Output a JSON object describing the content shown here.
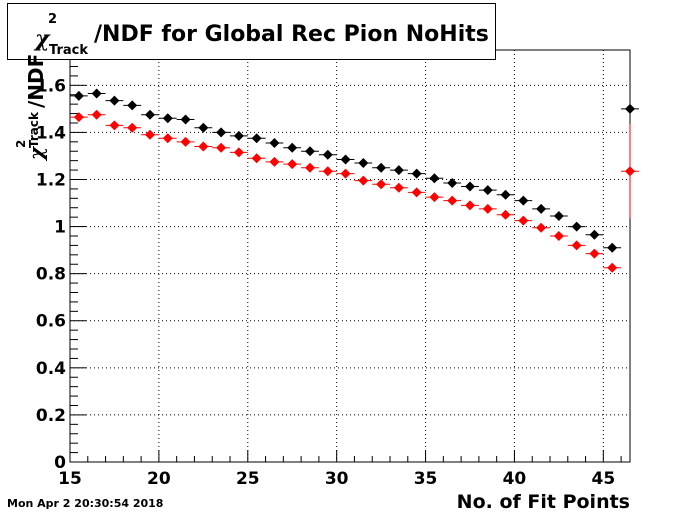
{
  "page": {
    "timestamp": "Mon Apr  2 20:30:54 2018"
  },
  "chart_data": {
    "type": "scatter",
    "title": {
      "chi": "χ",
      "sup": "2",
      "sub": "Track",
      "rest": "/NDF for Global Rec Pion NoHits"
    },
    "xlabel": "No. of Fit Points",
    "ylabel": {
      "chi": "χ",
      "sup": "2",
      "sub": "Track",
      "rest": "/NDF"
    },
    "xlim": [
      15,
      46.5
    ],
    "ylim": [
      0,
      1.75
    ],
    "x_ticks": [
      15,
      20,
      25,
      30,
      35,
      40,
      45
    ],
    "y_ticks": [
      0,
      0.2,
      0.4,
      0.6,
      0.8,
      1,
      1.2,
      1.4,
      1.6
    ],
    "y_tick_labels": [
      "0",
      "0.2",
      "0.4",
      "0.6",
      "0.8",
      "1",
      "1.2",
      "1.4",
      "1.6"
    ],
    "grid": true,
    "series": [
      {
        "color": "#000000",
        "x": [
          15.5,
          16.5,
          17.5,
          18.5,
          19.5,
          20.5,
          21.5,
          22.5,
          23.5,
          24.5,
          25.5,
          26.5,
          27.5,
          28.5,
          29.5,
          30.5,
          31.5,
          32.5,
          33.5,
          34.5,
          35.5,
          36.5,
          37.5,
          38.5,
          39.5,
          40.5,
          41.5,
          42.5,
          43.5,
          44.5,
          45.5,
          46.5
        ],
        "y": [
          1.555,
          1.565,
          1.535,
          1.515,
          1.475,
          1.46,
          1.455,
          1.42,
          1.4,
          1.385,
          1.375,
          1.355,
          1.335,
          1.32,
          1.305,
          1.285,
          1.27,
          1.25,
          1.24,
          1.225,
          1.205,
          1.185,
          1.17,
          1.155,
          1.135,
          1.11,
          1.075,
          1.045,
          1.0,
          0.965,
          0.91,
          1.5
        ],
        "yerr": [
          0,
          0,
          0,
          0,
          0,
          0,
          0,
          0,
          0,
          0,
          0,
          0,
          0,
          0,
          0,
          0,
          0,
          0,
          0,
          0,
          0,
          0,
          0,
          0,
          0,
          0,
          0,
          0,
          0,
          0,
          0,
          0
        ]
      },
      {
        "color": "#ff0000",
        "x": [
          15.5,
          16.5,
          17.5,
          18.5,
          19.5,
          20.5,
          21.5,
          22.5,
          23.5,
          24.5,
          25.5,
          26.5,
          27.5,
          28.5,
          29.5,
          30.5,
          31.5,
          32.5,
          33.5,
          34.5,
          35.5,
          36.5,
          37.5,
          38.5,
          39.5,
          40.5,
          41.5,
          42.5,
          43.5,
          44.5,
          45.5,
          46.5
        ],
        "y": [
          1.465,
          1.475,
          1.43,
          1.42,
          1.39,
          1.375,
          1.36,
          1.34,
          1.335,
          1.315,
          1.29,
          1.275,
          1.265,
          1.25,
          1.235,
          1.225,
          1.195,
          1.18,
          1.165,
          1.145,
          1.125,
          1.11,
          1.09,
          1.075,
          1.05,
          1.025,
          0.995,
          0.96,
          0.92,
          0.885,
          0.825,
          1.235
        ],
        "yerr": [
          0,
          0,
          0,
          0,
          0,
          0,
          0,
          0,
          0,
          0,
          0,
          0,
          0,
          0,
          0,
          0,
          0,
          0,
          0,
          0,
          0,
          0,
          0,
          0,
          0,
          0,
          0,
          0,
          0,
          0,
          0,
          0.2
        ]
      }
    ]
  }
}
